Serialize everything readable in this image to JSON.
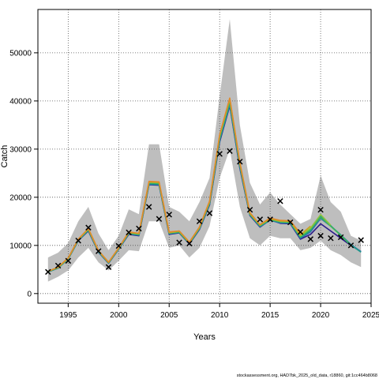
{
  "chart_data": {
    "type": "line",
    "xlabel": "Years",
    "ylabel": "Catch",
    "xlim": [
      1992,
      2025
    ],
    "ylim": [
      -2000,
      59000
    ],
    "xticks": [
      1995,
      2000,
      2005,
      2010,
      2015,
      2020,
      2025
    ],
    "yticks": [
      0,
      10000,
      20000,
      30000,
      40000,
      50000
    ],
    "grid": true,
    "legend": "none",
    "footer": "stockassessment.org, HAD7bk_2025_old_data, r18860, git:1cc464b8068",
    "colors": {
      "band": "#bebebe",
      "marker": "#000000",
      "grid": "#555555",
      "series": [
        "#2a1a8a",
        "#2d6fb0",
        "#1f9a8a",
        "#3cb55a",
        "#8fc43b",
        "#c8a020",
        "#e08a2c"
      ]
    },
    "years": [
      1993,
      1994,
      1995,
      1996,
      1997,
      1998,
      1999,
      2000,
      2001,
      2002,
      2003,
      2004,
      2005,
      2006,
      2007,
      2008,
      2009,
      2010,
      2011,
      2012,
      2013,
      2014,
      2015,
      2016,
      2017,
      2018,
      2019,
      2020,
      2021,
      2022,
      2023,
      2024
    ],
    "band_upper": [
      7500,
      8500,
      10500,
      15000,
      18000,
      12500,
      9000,
      12000,
      17500,
      16500,
      31000,
      31000,
      18000,
      17000,
      15000,
      19000,
      24000,
      41000,
      57000,
      35000,
      23000,
      18500,
      21000,
      18500,
      16500,
      14500,
      15500,
      24500,
      19000,
      17000,
      12000,
      11000
    ],
    "band_lower": [
      2500,
      3500,
      4800,
      7500,
      9500,
      6500,
      4800,
      6800,
      9000,
      8800,
      15000,
      15000,
      9500,
      10000,
      7500,
      9500,
      14000,
      24000,
      30000,
      18000,
      11500,
      10000,
      12000,
      11500,
      11500,
      9000,
      9500,
      11000,
      9000,
      8000,
      6500,
      5500
    ],
    "observed": [
      {
        "x": 1993,
        "y": 4500
      },
      {
        "x": 1994,
        "y": 5800
      },
      {
        "x": 1995,
        "y": 6800
      },
      {
        "x": 1996,
        "y": 11000
      },
      {
        "x": 1997,
        "y": 13700
      },
      {
        "x": 1998,
        "y": 8800
      },
      {
        "x": 1999,
        "y": 5500
      },
      {
        "x": 2000,
        "y": 9900
      },
      {
        "x": 2001,
        "y": 12700
      },
      {
        "x": 2002,
        "y": 13500
      },
      {
        "x": 2003,
        "y": 18000
      },
      {
        "x": 2004,
        "y": 15500
      },
      {
        "x": 2005,
        "y": 16400
      },
      {
        "x": 2006,
        "y": 10600
      },
      {
        "x": 2007,
        "y": 10400
      },
      {
        "x": 2008,
        "y": 15000
      },
      {
        "x": 2009,
        "y": 16700
      },
      {
        "x": 2010,
        "y": 29000
      },
      {
        "x": 2011,
        "y": 29600
      },
      {
        "x": 2012,
        "y": 27400
      },
      {
        "x": 2013,
        "y": 17400
      },
      {
        "x": 2014,
        "y": 15400
      },
      {
        "x": 2015,
        "y": 15400
      },
      {
        "x": 2016,
        "y": 19200
      },
      {
        "x": 2017,
        "y": 14800
      },
      {
        "x": 2018,
        "y": 12800
      },
      {
        "x": 2019,
        "y": 11300
      },
      {
        "x": 2020,
        "y": 12000
      },
      {
        "x": 2020,
        "y": 17400
      },
      {
        "x": 2021,
        "y": 11500
      },
      {
        "x": 2022,
        "y": 11700
      },
      {
        "x": 2023,
        "y": 10000
      },
      {
        "x": 2024,
        "y": 11100
      }
    ],
    "series": [
      {
        "start": 1993,
        "values": [
          4500,
          5300,
          7200,
          11000,
          13000,
          8600,
          6300,
          9200,
          12300,
          12000,
          22600,
          22500,
          12300,
          12600,
          10300,
          13300,
          18400,
          31500,
          39000,
          26000,
          16200,
          13800,
          15300,
          14600,
          14500,
          11300,
          12300,
          14500,
          13000,
          11500,
          10000,
          8700
        ]
      },
      {
        "start": 1993,
        "values": [
          4500,
          5300,
          7200,
          11000,
          13100,
          8600,
          6300,
          9200,
          12400,
          12100,
          22700,
          22600,
          12400,
          12700,
          10400,
          13400,
          18500,
          31800,
          39200,
          26200,
          16300,
          13900,
          15200,
          14700,
          14600,
          11500,
          12800,
          15600,
          14000,
          12200,
          10200,
          8700
        ]
      },
      {
        "start": 1993,
        "values": [
          4500,
          5300,
          7200,
          11100,
          13200,
          8700,
          6400,
          9300,
          12500,
          12200,
          22800,
          22700,
          12500,
          12700,
          10400,
          13500,
          18700,
          32000,
          39500,
          26500,
          16400,
          14000,
          15300,
          14800,
          14700,
          11600,
          13100,
          16100,
          14100,
          12100,
          10100,
          8600
        ]
      },
      {
        "start": 1993,
        "values": [
          4600,
          5400,
          7300,
          11200,
          13300,
          8800,
          6400,
          9400,
          12600,
          12300,
          23000,
          22900,
          12600,
          12800,
          10500,
          13600,
          18900,
          32500,
          40000,
          26800,
          16500,
          14100,
          15400,
          14900,
          14800,
          11800,
          13300,
          15800,
          14000,
          12100,
          10000
        ]
      },
      {
        "start": 1993,
        "values": [
          4600,
          5400,
          7300,
          11200,
          13400,
          8800,
          6500,
          9400,
          12700,
          12400,
          23100,
          23000,
          12600,
          12900,
          10600,
          13700,
          19000,
          32700,
          40300,
          27000,
          16600,
          14200,
          15500,
          15000,
          14900,
          12000,
          13600,
          16400,
          14200
        ]
      },
      {
        "start": 1993,
        "values": [
          4600,
          5500,
          7400,
          11300,
          13500,
          8900,
          6500,
          9500,
          12700,
          12500,
          23200,
          23100,
          12700,
          13000,
          10600,
          13800,
          19100,
          32900,
          40500,
          27100,
          16700,
          14300,
          15600,
          15100,
          15000,
          12200,
          14000
        ]
      },
      {
        "start": 1993,
        "values": [
          4600,
          5500,
          7400,
          11300,
          13500,
          8900,
          6500,
          9500,
          12800,
          12500,
          23300,
          23200,
          12800,
          13000,
          10700,
          13800,
          19200,
          33000,
          40600,
          27200,
          16800,
          14300,
          15700,
          15200,
          15100,
          12500
        ]
      }
    ]
  }
}
